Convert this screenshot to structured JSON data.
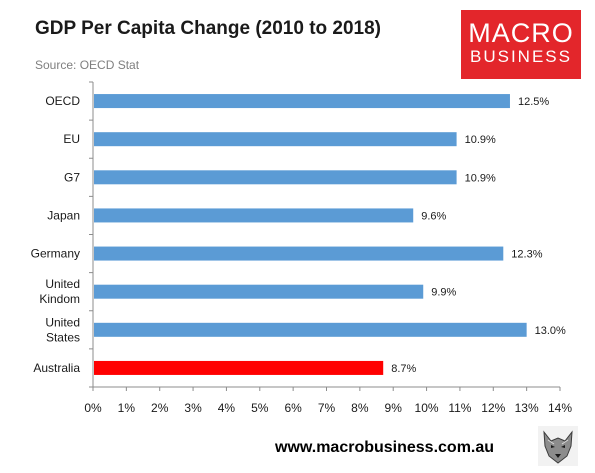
{
  "title": "GDP Per Capita Change (2010 to 2018)",
  "subtitle": "Source: OECD Stat",
  "logo": {
    "line1": "MACRO",
    "line2": "BUSINESS"
  },
  "footer": {
    "url": "www.macrobusiness.com.au"
  },
  "colors": {
    "bar": "#5b9bd5",
    "highlight": "#ff0000",
    "brand": "#e3262b"
  },
  "chart_data": {
    "type": "bar",
    "orientation": "horizontal",
    "categories": [
      [
        "OECD"
      ],
      [
        "EU"
      ],
      [
        "G7"
      ],
      [
        "Japan"
      ],
      [
        "Germany"
      ],
      [
        "United",
        "Kindom"
      ],
      [
        "United",
        "States"
      ],
      [
        "Australia"
      ]
    ],
    "values": [
      12.5,
      10.9,
      10.9,
      9.6,
      12.3,
      9.9,
      13.0,
      8.7
    ],
    "value_labels": [
      "12.5%",
      "10.9%",
      "10.9%",
      "9.6%",
      "12.3%",
      "9.9%",
      "13.0%",
      "8.7%"
    ],
    "highlight_index": 7,
    "xlim": [
      0,
      14
    ],
    "xticks": [
      "0%",
      "1%",
      "2%",
      "3%",
      "4%",
      "5%",
      "6%",
      "7%",
      "8%",
      "9%",
      "10%",
      "11%",
      "12%",
      "13%",
      "14%"
    ],
    "grid": false,
    "legend": "none"
  }
}
